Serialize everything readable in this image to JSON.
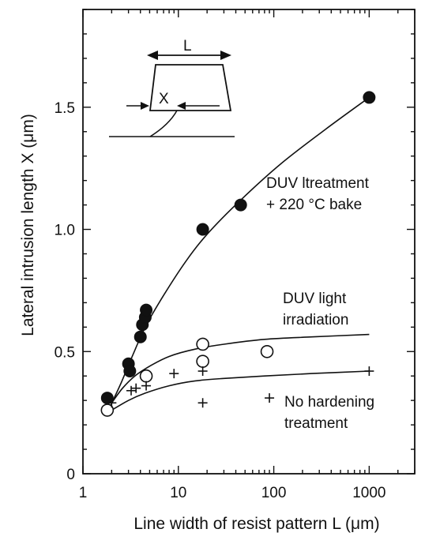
{
  "chart_data": {
    "type": "scatter",
    "xscale": "log",
    "xlim": [
      1,
      3000
    ],
    "ylim": [
      0,
      1.9
    ],
    "xticks": [
      1,
      10,
      100,
      1000
    ],
    "xtick_labels": [
      "1",
      "10",
      "100",
      "1000"
    ],
    "yticks": [
      0,
      0.5,
      1.0,
      1.5
    ],
    "ytick_labels": [
      "0",
      "0.5",
      "1.0",
      "1.5"
    ],
    "xlabel": "Line width  of resist pattern  L (μm)",
    "ylabel": "Lateral intrusion length  X (μm)",
    "grid": false,
    "series": [
      {
        "name": "DUV ltreatment + 220 °C bake",
        "label_lines": [
          "DUV ltreatment",
          "+ 220 °C bake"
        ],
        "marker": "filled-circle",
        "x": [
          1.8,
          3.0,
          3.1,
          4.0,
          4.2,
          4.5,
          4.6,
          18,
          45,
          1000
        ],
        "y": [
          0.31,
          0.45,
          0.42,
          0.56,
          0.61,
          0.64,
          0.67,
          1.0,
          1.1,
          1.54
        ],
        "curve_x": [
          1.9,
          2.5,
          3.2,
          4.5,
          7,
          12,
          20,
          45,
          120,
          350,
          1000
        ],
        "curve_y": [
          0.27,
          0.37,
          0.47,
          0.6,
          0.73,
          0.87,
          0.98,
          1.12,
          1.27,
          1.41,
          1.54
        ]
      },
      {
        "name": "DUV light irradiation",
        "label_lines": [
          "DUV light",
          "irradiation"
        ],
        "marker": "open-circle",
        "x": [
          1.8,
          4.6,
          18,
          18,
          85
        ],
        "y": [
          0.26,
          0.4,
          0.46,
          0.53,
          0.5
        ],
        "curve_x": [
          2.0,
          2.6,
          3.5,
          5,
          8,
          15,
          30,
          80,
          250,
          1000
        ],
        "curve_y": [
          0.29,
          0.35,
          0.4,
          0.44,
          0.48,
          0.51,
          0.53,
          0.55,
          0.56,
          0.57
        ]
      },
      {
        "name": "No hardening treatment",
        "label_lines": [
          "No hardening",
          "treatment"
        ],
        "marker": "plus",
        "x": [
          2.0,
          3.2,
          3.6,
          4.6,
          9,
          18,
          18,
          90,
          1000
        ],
        "y": [
          0.29,
          0.34,
          0.35,
          0.36,
          0.41,
          0.42,
          0.29,
          0.31,
          0.42
        ],
        "curve_x": [
          2.0,
          3,
          4.5,
          8,
          15,
          30,
          80,
          250,
          1000
        ],
        "curve_y": [
          0.26,
          0.3,
          0.33,
          0.36,
          0.38,
          0.39,
          0.4,
          0.41,
          0.42
        ]
      }
    ],
    "inset": {
      "label_L": "L",
      "label_X": "X"
    }
  }
}
